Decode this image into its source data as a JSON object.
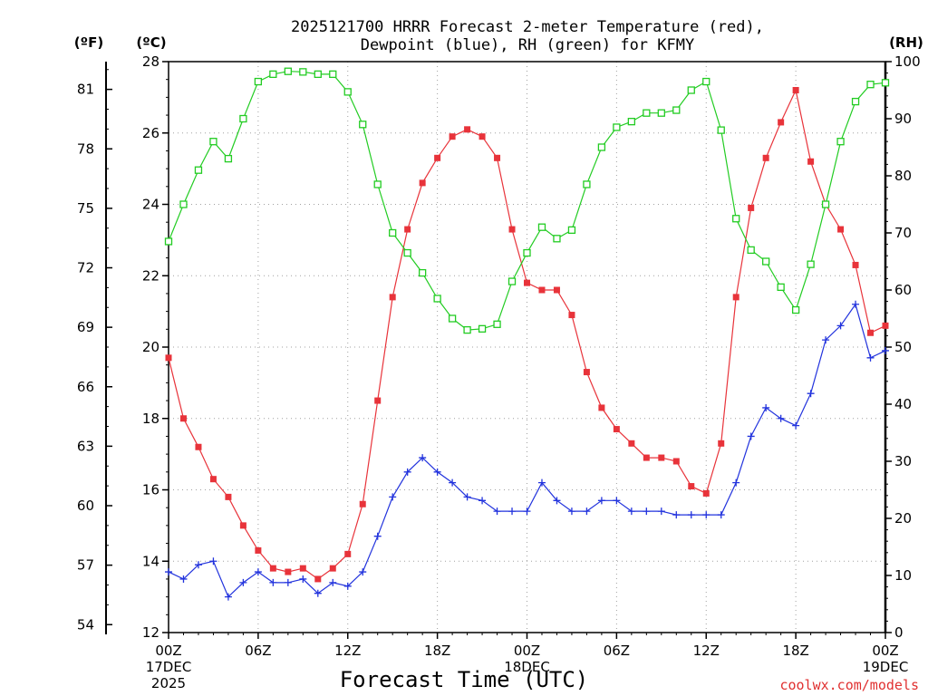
{
  "chart_data": {
    "type": "line",
    "title_line1": "2025121700 HRRR Forecast 2-meter Temperature (red),",
    "title_line2": "Dewpoint (blue), RH (green) for KFMY",
    "xlabel": "Forecast Time (UTC)",
    "left_unit_f": "(ºF)",
    "left_unit_c": "(ºC)",
    "right_unit": "(RH)",
    "credit": "coolwx.com/models",
    "ylim_c": [
      12,
      28
    ],
    "ylim_rh": [
      0,
      100
    ],
    "x_ticks": [
      {
        "hour": 0,
        "label": "00Z",
        "sub1": "17DEC",
        "sub2": "2025"
      },
      {
        "hour": 6,
        "label": "06Z"
      },
      {
        "hour": 12,
        "label": "12Z"
      },
      {
        "hour": 18,
        "label": "18Z"
      },
      {
        "hour": 24,
        "label": "00Z",
        "sub1": "18DEC"
      },
      {
        "hour": 30,
        "label": "06Z"
      },
      {
        "hour": 36,
        "label": "12Z"
      },
      {
        "hour": 42,
        "label": "18Z"
      },
      {
        "hour": 48,
        "label": "00Z",
        "sub1": "19DEC"
      }
    ],
    "left_c_ticks": [
      "12",
      "14",
      "16",
      "18",
      "20",
      "22",
      "24",
      "26",
      "28"
    ],
    "left_f_ticks": [
      "54",
      "57",
      "60",
      "63",
      "66",
      "69",
      "72",
      "75",
      "78",
      "81"
    ],
    "right_rh_ticks": [
      "0",
      "10",
      "20",
      "30",
      "40",
      "50",
      "60",
      "70",
      "80",
      "90",
      "100"
    ],
    "series": [
      {
        "name": "Temperature (red)",
        "color": "#e8333a",
        "axis": "C",
        "marker": "filled-square",
        "values": [
          19.7,
          18.0,
          17.2,
          16.3,
          15.8,
          15.0,
          14.3,
          13.8,
          13.7,
          13.8,
          13.5,
          13.8,
          14.2,
          15.6,
          18.5,
          21.4,
          23.3,
          24.6,
          25.3,
          25.9,
          26.1,
          25.9,
          25.3,
          23.3,
          21.8,
          21.6,
          21.6,
          20.9,
          19.3,
          18.3,
          17.7,
          17.3,
          16.9,
          16.9,
          16.8,
          16.1,
          15.9,
          17.3,
          21.4,
          23.9,
          25.3,
          26.3,
          27.2,
          25.2,
          24.0,
          23.3,
          22.3,
          20.4,
          20.6
        ]
      },
      {
        "name": "Dewpoint (blue)",
        "color": "#2233dd",
        "axis": "C",
        "marker": "plus",
        "values": [
          13.7,
          13.5,
          13.9,
          14.0,
          13.0,
          13.4,
          13.7,
          13.4,
          13.4,
          13.5,
          13.1,
          13.4,
          13.3,
          13.7,
          14.7,
          15.8,
          16.5,
          16.9,
          16.5,
          16.2,
          15.8,
          15.7,
          15.4,
          15.4,
          15.4,
          16.2,
          15.7,
          15.4,
          15.4,
          15.7,
          15.7,
          15.4,
          15.4,
          15.4,
          15.3,
          15.3,
          15.3,
          15.3,
          16.2,
          17.5,
          18.3,
          18.0,
          17.8,
          18.7,
          20.2,
          20.6,
          21.2,
          19.7,
          19.9
        ]
      },
      {
        "name": "RH (green)",
        "color": "#22cc22",
        "axis": "RH",
        "marker": "open-square",
        "values": [
          68.5,
          75.0,
          81.0,
          86.0,
          83.0,
          90.0,
          96.5,
          97.8,
          98.3,
          98.2,
          97.8,
          97.8,
          94.7,
          89.0,
          78.5,
          70.0,
          66.5,
          63.0,
          58.5,
          55.0,
          53.0,
          53.2,
          54.0,
          61.5,
          66.5,
          71.0,
          69.0,
          70.5,
          78.5,
          85.0,
          88.5,
          89.5,
          91.0,
          91.0,
          91.5,
          95.0,
          96.5,
          88.0,
          72.5,
          67.0,
          65.0,
          60.5,
          56.5,
          64.5,
          75.0,
          86.0,
          93.0,
          96.0,
          96.3
        ]
      }
    ]
  }
}
